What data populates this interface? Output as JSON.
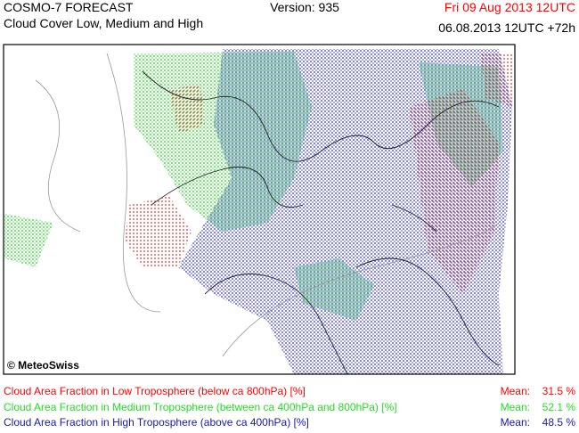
{
  "header": {
    "title": "COSMO-7 FORECAST",
    "subtitle": "Cloud Cover Low, Medium and High",
    "version": "Version: 935",
    "valid_time": "Fri 09 Aug 2013 12UTC",
    "run_time": "06.08.2013 12UTC +72h"
  },
  "map": {
    "copyright": "© MeteoSwiss"
  },
  "legend": [
    {
      "label": "Cloud Area Fraction in Low Troposphere (below ca 800hPa) [%]",
      "mean_label": "Mean:",
      "mean": "31.5 %",
      "color": "#ff0000"
    },
    {
      "label": "Cloud Area Fraction in Medium Troposphere (between ca 400hPa and 800hPa) [%]",
      "mean_label": "Mean:",
      "mean": "52.1 %",
      "color": "#22dd22"
    },
    {
      "label": "Cloud Area Fraction in High Troposphere (above ca 400hPa) [%]",
      "mean_label": "Mean:",
      "mean": "48.5 %",
      "color": "#1a1aa8"
    }
  ]
}
